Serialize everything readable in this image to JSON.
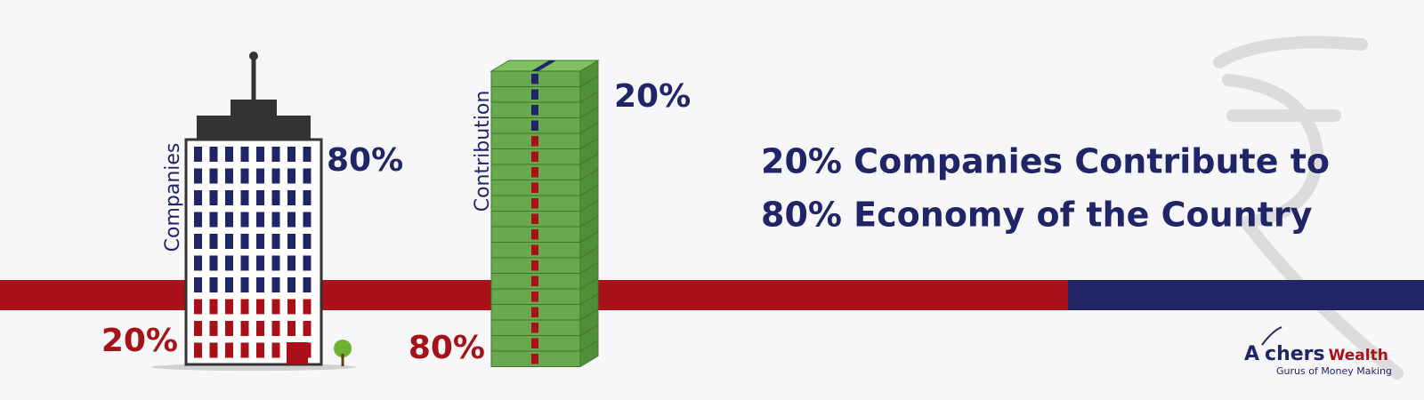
{
  "building": {
    "label": "Companies",
    "top_share": "80%",
    "bottom_share": "20%"
  },
  "stack": {
    "label": "Contribution",
    "top_share": "20%",
    "bottom_share": "80%"
  },
  "headline": {
    "line1": "20% Companies Contribute to",
    "line2": "80% Economy of the Country"
  },
  "logo": {
    "name1": "A",
    "name2": "chers",
    "name3": "Wealth",
    "tagline": "Gurus of Money Making"
  }
}
